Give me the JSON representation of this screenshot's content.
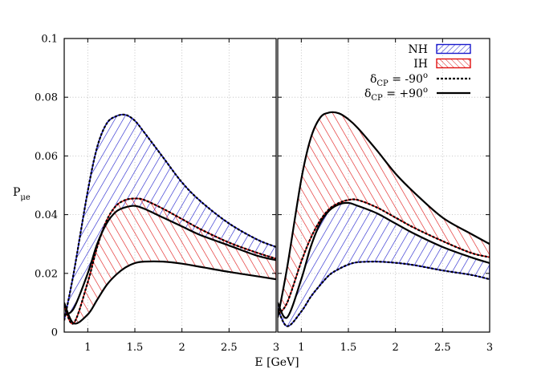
{
  "chart_data": {
    "type": "line",
    "ylabel": "P",
    "ylabel_sub": "μe",
    "xlabel": "E [GeV]",
    "ylim": [
      0,
      0.1
    ],
    "xlim": [
      0.75,
      3
    ],
    "y_ticks": [
      "0",
      "0.02",
      "0.04",
      "0.06",
      "0.08",
      "0.1"
    ],
    "y_tick_values": [
      0,
      0.02,
      0.04,
      0.06,
      0.08,
      0.1
    ],
    "x_ticks": [
      "1",
      "1.5",
      "2",
      "2.5",
      "3"
    ],
    "x_tick_values": [
      1,
      1.5,
      2,
      2.5,
      3
    ],
    "grid": true,
    "legend_position": "top-right",
    "colors": {
      "NH": "#1a1acc",
      "IH": "#e01010",
      "curve": "#000000"
    },
    "legend": [
      {
        "key": "nh",
        "label": "NH",
        "style": "band-blue"
      },
      {
        "key": "ih",
        "label": "IH",
        "style": "band-red"
      },
      {
        "key": "dm90",
        "label": "δ",
        "sub": "CP",
        "rest": " = -90",
        "sup": "o",
        "style": "dashed"
      },
      {
        "key": "dp90",
        "label": "δ",
        "sub": "CP",
        "rest": " = +90",
        "sup": "o",
        "style": "solid"
      }
    ],
    "panels": [
      {
        "name": "left",
        "x": [
          0.75,
          0.85,
          1.0,
          1.1,
          1.2,
          1.3,
          1.4,
          1.5,
          1.6,
          1.8,
          2.0,
          2.2,
          2.5,
          2.8,
          3.0
        ],
        "series": [
          {
            "band": "NH",
            "role": "upper",
            "style": "dashed",
            "values": [
              0.004,
              0.02,
              0.048,
              0.063,
              0.071,
              0.0735,
              0.074,
              0.072,
              0.068,
              0.0595,
              0.051,
              0.0445,
              0.037,
              0.0315,
              0.029
            ]
          },
          {
            "band": "NH",
            "role": "lower",
            "style": "solid",
            "values": [
              0.006,
              0.008,
              0.02,
              0.03,
              0.037,
              0.041,
              0.0425,
              0.043,
              0.042,
              0.039,
              0.036,
              0.033,
              0.0295,
              0.026,
              0.0245
            ]
          },
          {
            "band": "IH",
            "role": "upper",
            "style": "dashed",
            "values": [
              0.009,
              0.003,
              0.017,
              0.029,
              0.038,
              0.043,
              0.045,
              0.0455,
              0.045,
              0.042,
              0.0385,
              0.035,
              0.0305,
              0.027,
              0.025
            ]
          },
          {
            "band": "IH",
            "role": "lower",
            "style": "solid",
            "values": [
              0.01,
              0.003,
              0.006,
              0.011,
              0.016,
              0.0195,
              0.022,
              0.0235,
              0.024,
              0.024,
              0.0233,
              0.0222,
              0.0205,
              0.019,
              0.018
            ]
          }
        ]
      },
      {
        "name": "right",
        "x": [
          0.75,
          0.85,
          1.0,
          1.1,
          1.2,
          1.3,
          1.4,
          1.5,
          1.6,
          1.8,
          2.0,
          2.2,
          2.5,
          2.8,
          3.0
        ],
        "series": [
          {
            "band": "IH",
            "role": "upper",
            "style": "solid",
            "values": [
              0.005,
              0.022,
              0.052,
              0.066,
              0.073,
              0.0748,
              0.0745,
              0.0725,
              0.0695,
              0.062,
              0.054,
              0.0475,
              0.039,
              0.0335,
              0.03
            ]
          },
          {
            "band": "IH",
            "role": "lower",
            "style": "dashed",
            "values": [
              0.006,
              0.01,
              0.024,
              0.032,
              0.038,
              0.042,
              0.044,
              0.045,
              0.045,
              0.0425,
              0.039,
              0.0355,
              0.031,
              0.027,
              0.0255
            ]
          },
          {
            "band": "NH",
            "role": "upper",
            "style": "solid",
            "values": [
              0.01,
              0.005,
              0.018,
              0.029,
              0.037,
              0.0415,
              0.0435,
              0.044,
              0.043,
              0.0405,
              0.037,
              0.0335,
              0.029,
              0.0255,
              0.0235
            ]
          },
          {
            "band": "NH",
            "role": "lower",
            "style": "dashed",
            "values": [
              0.008,
              0.002,
              0.007,
              0.012,
              0.016,
              0.0195,
              0.0215,
              0.023,
              0.0238,
              0.024,
              0.0236,
              0.0228,
              0.021,
              0.0195,
              0.018
            ]
          }
        ]
      }
    ]
  }
}
